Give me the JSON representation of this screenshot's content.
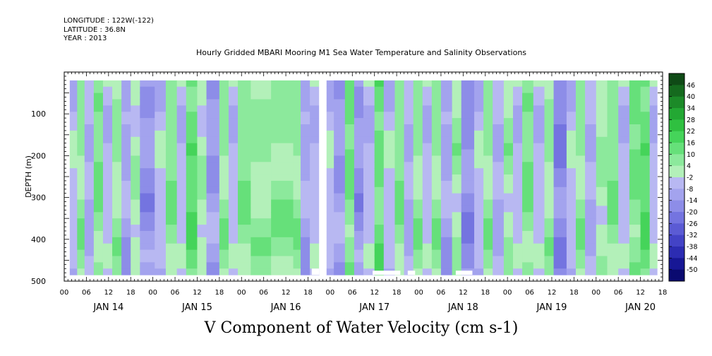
{
  "header": {
    "longitude": "LONGITUDE : 122W(-122)",
    "latitude": "LATITUDE : 36.8N",
    "year": "YEAR : 2013"
  },
  "chart_data": {
    "type": "heatmap",
    "title": "Hourly Gridded MBARI Mooring M1 Sea Water Temperature and Salinity Observations",
    "xlabel": "V Component of Water Velocity (cm s-1)",
    "ylabel": "DEPTH (m)",
    "ylim": [
      0,
      500
    ],
    "y_inverted": true,
    "y_ticks": [
      100,
      200,
      300,
      400,
      500
    ],
    "x_start_hour": 0,
    "x_end_hour": 162,
    "x_hour_ticks": [
      "00",
      "06",
      "12",
      "18",
      "00",
      "06",
      "12",
      "18",
      "00",
      "06",
      "12",
      "18",
      "00",
      "06",
      "12",
      "18",
      "00",
      "06",
      "12",
      "18",
      "00",
      "06",
      "12",
      "18",
      "00",
      "06",
      "12",
      "18"
    ],
    "x_day_labels": [
      "JAN 14",
      "JAN 15",
      "JAN 16",
      "JAN 17",
      "JAN 18",
      "JAN 19",
      "JAN 20"
    ],
    "data_depth_range": [
      20,
      485
    ],
    "data_time_range_hours": [
      1.5,
      160.5
    ],
    "colorbar": {
      "labels": [
        "46",
        "40",
        "34",
        "28",
        "22",
        "16",
        "10",
        "4",
        "-2",
        "-8",
        "-14",
        "-20",
        "-26",
        "-32",
        "-38",
        "-44",
        "-50"
      ],
      "colors": [
        "#0f4a16",
        "#156a1e",
        "#1c8a28",
        "#23a833",
        "#2fc040",
        "#45d45a",
        "#66e07a",
        "#8ce99c",
        "#b3f0b9",
        "#b8b8f2",
        "#a3a3ee",
        "#8d8de8",
        "#7474e0",
        "#5b5bd4",
        "#4343c6",
        "#2c2cb2",
        "#171795",
        "#0a0a70"
      ]
    },
    "gaps": [
      {
        "from_hour": 69.0,
        "to_hour": 71.0,
        "depth_from": 20,
        "depth_to": 485
      },
      {
        "from_hour": 67.0,
        "to_hour": 69.0,
        "depth_from": 470,
        "depth_to": 485
      },
      {
        "from_hour": 83.5,
        "to_hour": 91.0,
        "depth_from": 475,
        "depth_to": 485
      },
      {
        "from_hour": 93.0,
        "to_hour": 95.0,
        "depth_from": 475,
        "depth_to": 485
      },
      {
        "from_hour": 106.0,
        "to_hour": 110.5,
        "depth_from": 475,
        "depth_to": 485
      }
    ],
    "bands": [
      {
        "from": 1.5,
        "to": 3.5,
        "value": -4
      },
      {
        "from": 3.5,
        "to": 5.5,
        "value": 6
      },
      {
        "from": 5.5,
        "to": 8.0,
        "value": -8
      },
      {
        "from": 8.0,
        "to": 10.5,
        "value": 9
      },
      {
        "from": 10.5,
        "to": 13.0,
        "value": -6
      },
      {
        "from": 13.0,
        "to": 15.5,
        "value": 5
      },
      {
        "from": 15.5,
        "to": 18.0,
        "value": -10
      },
      {
        "from": 18.0,
        "to": 20.5,
        "value": 2
      },
      {
        "from": 20.5,
        "to": 24.5,
        "value": -14
      },
      {
        "from": 24.5,
        "to": 27.5,
        "value": -4
      },
      {
        "from": 27.5,
        "to": 30.5,
        "value": 8
      },
      {
        "from": 30.5,
        "to": 33.0,
        "value": -6
      },
      {
        "from": 33.0,
        "to": 36.0,
        "value": 14
      },
      {
        "from": 36.0,
        "to": 38.5,
        "value": 2
      },
      {
        "from": 38.5,
        "to": 42.0,
        "value": -12
      },
      {
        "from": 42.0,
        "to": 44.5,
        "value": 6
      },
      {
        "from": 44.5,
        "to": 47.0,
        "value": -6
      },
      {
        "from": 47.0,
        "to": 50.5,
        "value": 8
      },
      {
        "from": 50.5,
        "to": 56.0,
        "value": 5
      },
      {
        "from": 56.0,
        "to": 62.0,
        "value": 7
      },
      {
        "from": 62.0,
        "to": 64.0,
        "value": 6
      },
      {
        "from": 64.0,
        "to": 66.5,
        "value": -10
      },
      {
        "from": 66.5,
        "to": 69.0,
        "value": -6
      },
      {
        "from": 71.0,
        "to": 73.0,
        "value": -4
      },
      {
        "from": 73.0,
        "to": 76.0,
        "value": -12
      },
      {
        "from": 76.0,
        "to": 78.5,
        "value": 10
      },
      {
        "from": 78.5,
        "to": 81.0,
        "value": -14
      },
      {
        "from": 81.0,
        "to": 84.0,
        "value": -6
      },
      {
        "from": 84.0,
        "to": 86.5,
        "value": 12
      },
      {
        "from": 86.5,
        "to": 89.5,
        "value": -4
      },
      {
        "from": 89.5,
        "to": 92.0,
        "value": 8
      },
      {
        "from": 92.0,
        "to": 94.5,
        "value": -8
      },
      {
        "from": 94.5,
        "to": 97.0,
        "value": 6
      },
      {
        "from": 97.0,
        "to": 99.5,
        "value": -6
      },
      {
        "from": 99.5,
        "to": 102.0,
        "value": 6
      },
      {
        "from": 102.0,
        "to": 105.0,
        "value": -10
      },
      {
        "from": 105.0,
        "to": 107.5,
        "value": 4
      },
      {
        "from": 107.5,
        "to": 111.0,
        "value": -16
      },
      {
        "from": 111.0,
        "to": 113.5,
        "value": -4
      },
      {
        "from": 113.5,
        "to": 116.0,
        "value": 6
      },
      {
        "from": 116.0,
        "to": 119.0,
        "value": -8
      },
      {
        "from": 119.0,
        "to": 121.5,
        "value": 4
      },
      {
        "from": 121.5,
        "to": 124.0,
        "value": -6
      },
      {
        "from": 124.0,
        "to": 127.0,
        "value": 9
      },
      {
        "from": 127.0,
        "to": 130.0,
        "value": -6
      },
      {
        "from": 130.0,
        "to": 132.5,
        "value": 5
      },
      {
        "from": 132.5,
        "to": 136.0,
        "value": -18
      },
      {
        "from": 136.0,
        "to": 138.5,
        "value": -4
      },
      {
        "from": 138.5,
        "to": 141.0,
        "value": 6
      },
      {
        "from": 141.0,
        "to": 144.0,
        "value": -8
      },
      {
        "from": 144.0,
        "to": 147.0,
        "value": 3
      },
      {
        "from": 147.0,
        "to": 150.0,
        "value": 8
      },
      {
        "from": 150.0,
        "to": 153.0,
        "value": -6
      },
      {
        "from": 153.0,
        "to": 156.0,
        "value": 10
      },
      {
        "from": 156.0,
        "to": 158.5,
        "value": 14
      },
      {
        "from": 158.5,
        "to": 160.5,
        "value": -6
      }
    ]
  }
}
